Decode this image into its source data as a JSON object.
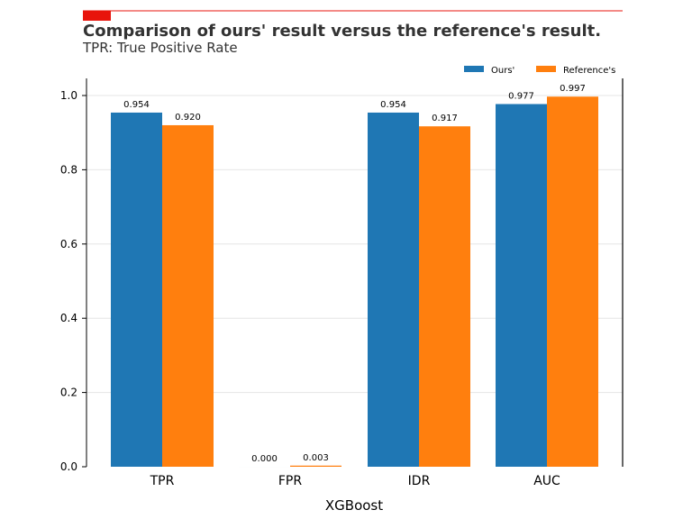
{
  "chart_data": {
    "type": "bar",
    "title": "Comparison of ours' result versus the reference's result.",
    "subtitle": "TPR: True Positive Rate",
    "xlabel": "XGBoost",
    "ylabel": "",
    "categories": [
      "TPR",
      "FPR",
      "IDR",
      "AUC"
    ],
    "series": [
      {
        "name": "Ours'",
        "color": "#1f77b4",
        "values": [
          0.954,
          0.0,
          0.954,
          0.977
        ],
        "labels": [
          "0.954",
          "0.000",
          "0.954",
          "0.977"
        ]
      },
      {
        "name": "Reference's",
        "color": "#ff7f0e",
        "values": [
          0.92,
          0.003,
          0.917,
          0.997
        ],
        "labels": [
          "0.920",
          "0.003",
          "0.917",
          "0.997"
        ]
      }
    ],
    "ylim": [
      0,
      1.05
    ],
    "yticks": [
      "0.0",
      "0.2",
      "0.4",
      "0.6",
      "0.8",
      "1.0"
    ],
    "grid": true,
    "legend_position": "top-right",
    "accent_color": "#e8140c"
  }
}
